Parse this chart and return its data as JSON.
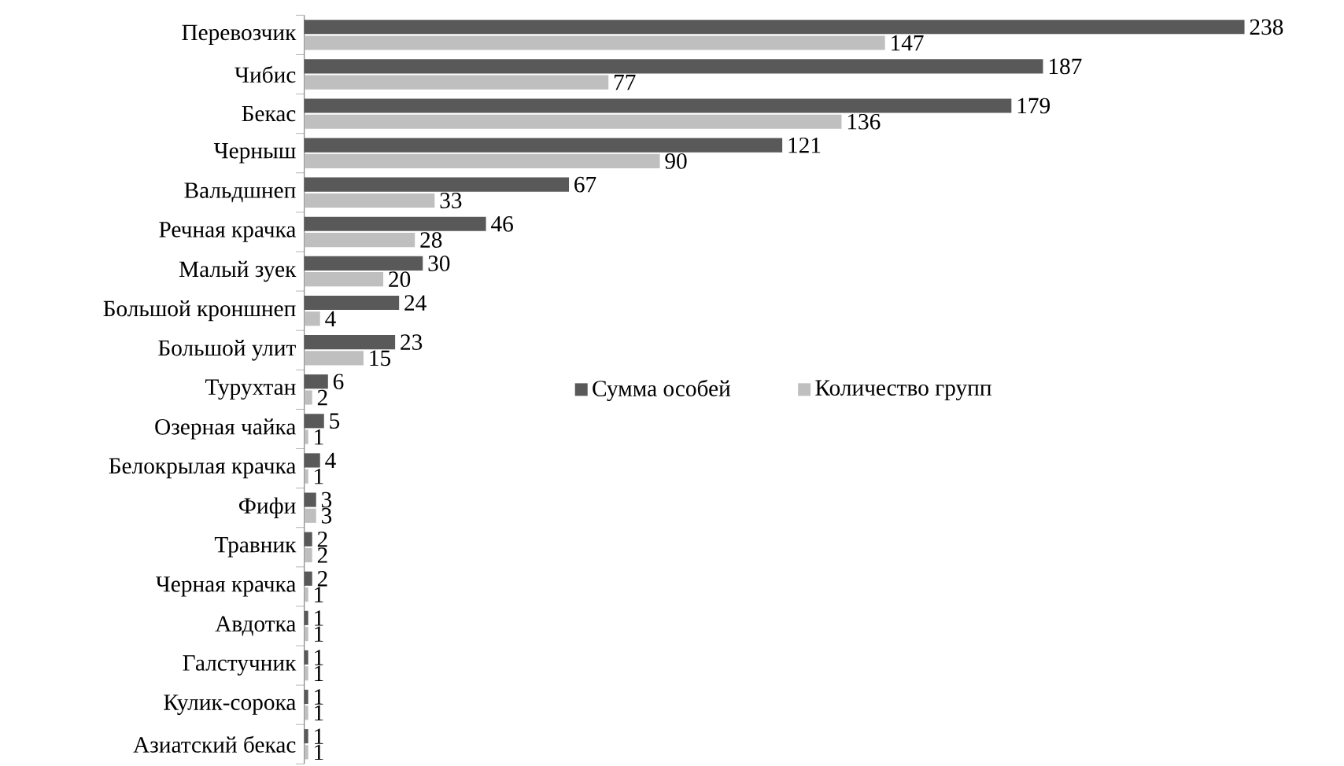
{
  "chart_data": {
    "type": "bar",
    "orientation": "horizontal",
    "data_labels": true,
    "legend": "right",
    "categories": [
      "Перевозчик",
      "Чибис",
      "Бекас",
      "Черныш",
      "Вальдшнеп",
      "Речная крачка",
      "Малый зуек",
      "Большой кроншнеп",
      "Большой улит",
      "Турухтан",
      "Озерная чайка",
      "Белокрылая крачка",
      "Фифи",
      "Травник",
      "Черная крачка",
      "Авдотка",
      "Галстучник",
      "Кулик-сорока",
      "Азиатский бекас"
    ],
    "series": [
      {
        "name": "Сумма особей",
        "color": "#595959",
        "values": [
          238,
          187,
          179,
          121,
          67,
          46,
          30,
          24,
          23,
          6,
          5,
          4,
          3,
          2,
          2,
          1,
          1,
          1,
          1
        ]
      },
      {
        "name": "Количество групп",
        "color": "#bfbfbf",
        "values": [
          147,
          77,
          136,
          90,
          33,
          28,
          20,
          4,
          15,
          2,
          1,
          1,
          3,
          2,
          1,
          1,
          1,
          1,
          1
        ]
      }
    ]
  }
}
